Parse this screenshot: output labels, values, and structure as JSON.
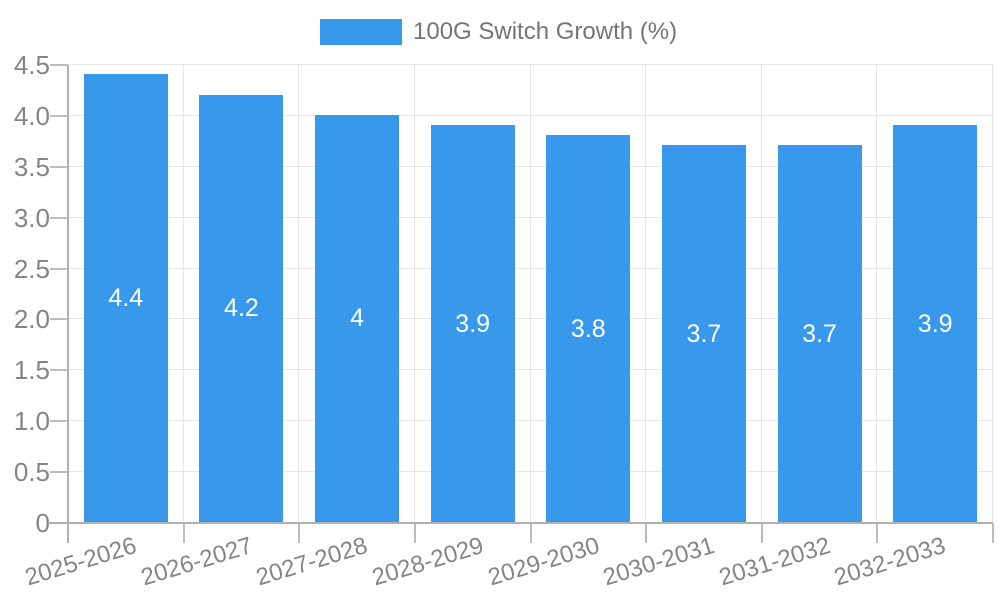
{
  "chart_data": {
    "type": "bar",
    "title": "",
    "legend": "100G Switch Growth (%)",
    "legend_position": "top",
    "categories": [
      "2025-2026",
      "2026-2027",
      "2027-2028",
      "2028-2029",
      "2029-2030",
      "2030-2031",
      "2031-2032",
      "2032-2033"
    ],
    "series": [
      {
        "name": "100G Switch Growth (%)",
        "values": [
          4.4,
          4.2,
          4.0,
          3.9,
          3.8,
          3.7,
          3.7,
          3.9
        ]
      }
    ],
    "bar_value_labels": [
      "4.4",
      "4.2",
      "4",
      "3.9",
      "3.8",
      "3.7",
      "3.7",
      "3.9"
    ],
    "xlabel": "",
    "ylabel": "",
    "ylim": [
      0,
      4.5
    ],
    "ytick_values": [
      0,
      0.5,
      1.0,
      1.5,
      2.0,
      2.5,
      3.0,
      3.5,
      4.0,
      4.5
    ],
    "ytick_labels": [
      "0",
      "0.5",
      "1.0",
      "1.5",
      "2.0",
      "2.5",
      "3.0",
      "3.5",
      "4.0",
      "4.5"
    ],
    "grid": true,
    "colors": {
      "bar": "#3899EC",
      "grid": "#e6e6e6",
      "axis": "#b0b0b0",
      "tick": "#bdbdbd",
      "axis_text": "#858585",
      "legend_text": "#757575",
      "value_label_text": "#ffffff"
    }
  }
}
